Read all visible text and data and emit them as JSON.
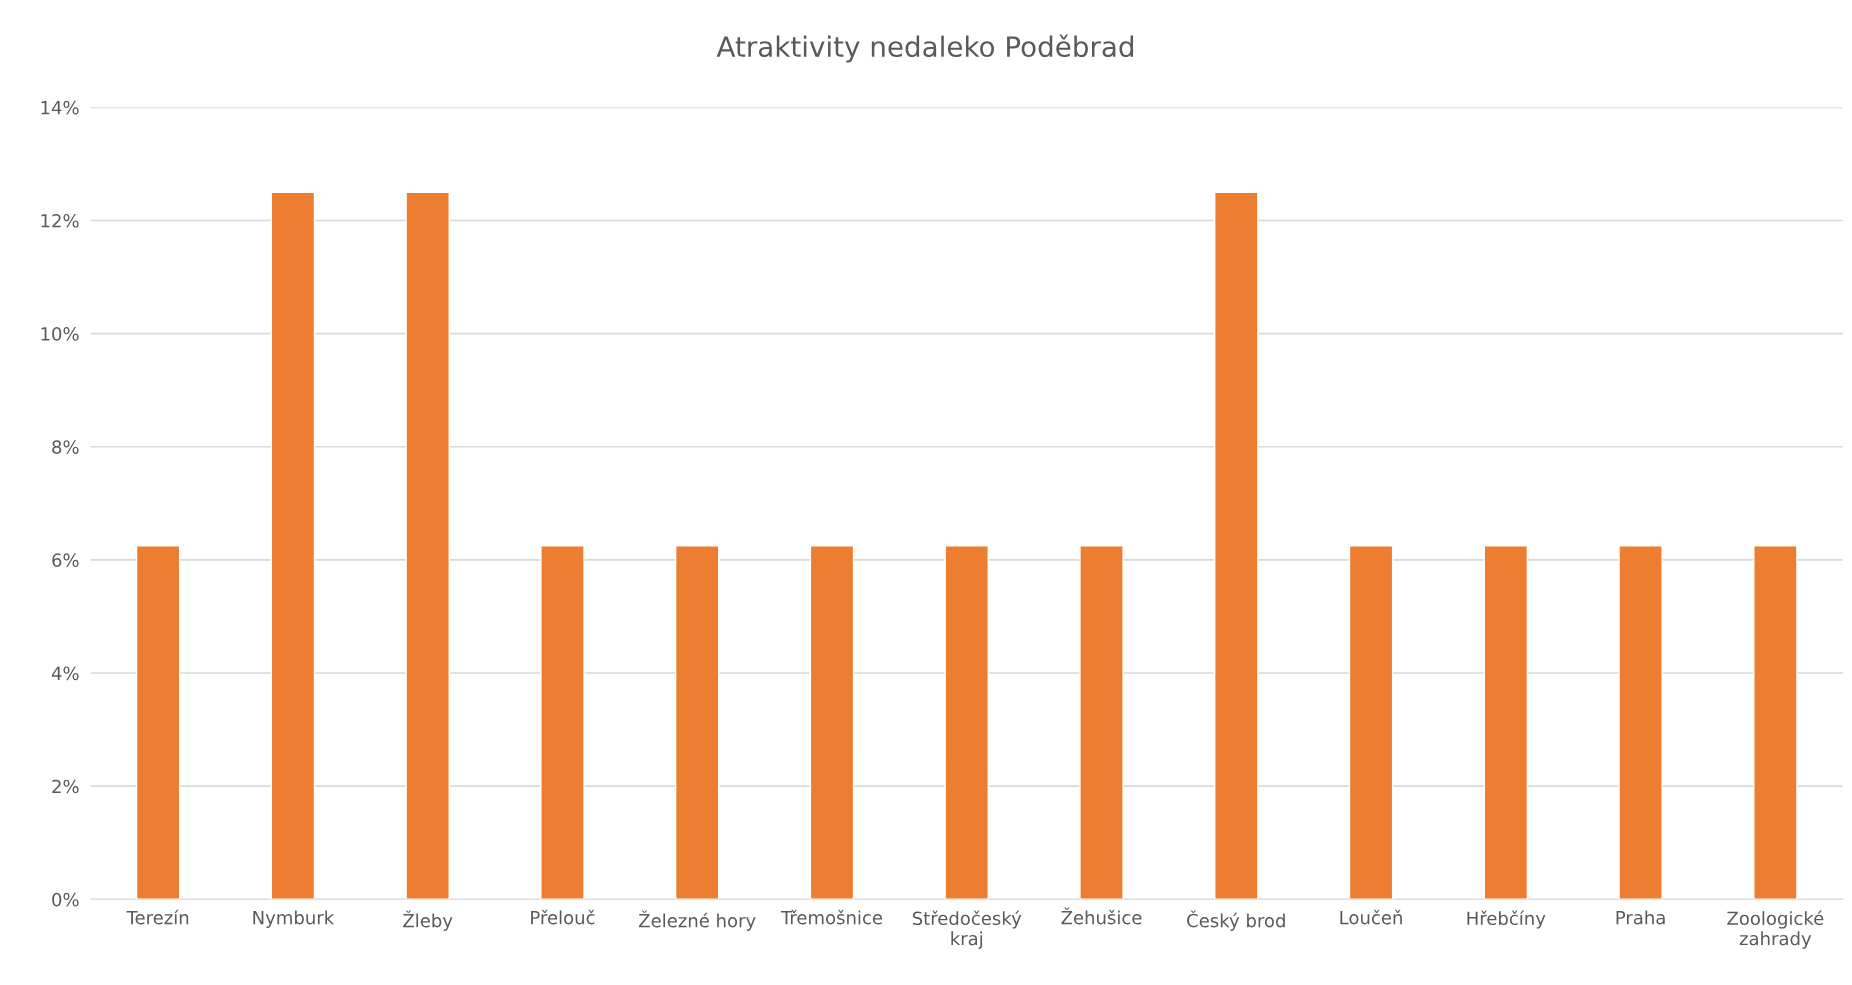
{
  "chart_data": {
    "type": "bar",
    "title": "Atraktivity nedaleko Poděbrad",
    "categories": [
      "Terezín",
      "Nymburk",
      "Žleby",
      "Přelouč",
      "Železné hory",
      "Třemošnice",
      "Středočeský\nkraj",
      "Žehušice",
      "Český brod",
      "Loučeň",
      "Hřebčíny",
      "Praha",
      "Zoologické\nzahrady"
    ],
    "values": [
      6.25,
      12.5,
      12.5,
      6.25,
      6.25,
      6.25,
      6.25,
      6.25,
      12.5,
      6.25,
      6.25,
      6.25,
      6.25
    ],
    "color": "#ed7d31",
    "ylim": [
      0,
      14
    ],
    "yticks": [
      {
        "value": 0,
        "label": "0%"
      },
      {
        "value": 2,
        "label": "2%"
      },
      {
        "value": 4,
        "label": "4%"
      },
      {
        "value": 6,
        "label": "6%"
      },
      {
        "value": 8,
        "label": "8%"
      },
      {
        "value": 10,
        "label": "10%"
      },
      {
        "value": 12,
        "label": "12%"
      },
      {
        "value": 14,
        "label": "14%"
      }
    ],
    "grid": "y",
    "legend": false
  }
}
